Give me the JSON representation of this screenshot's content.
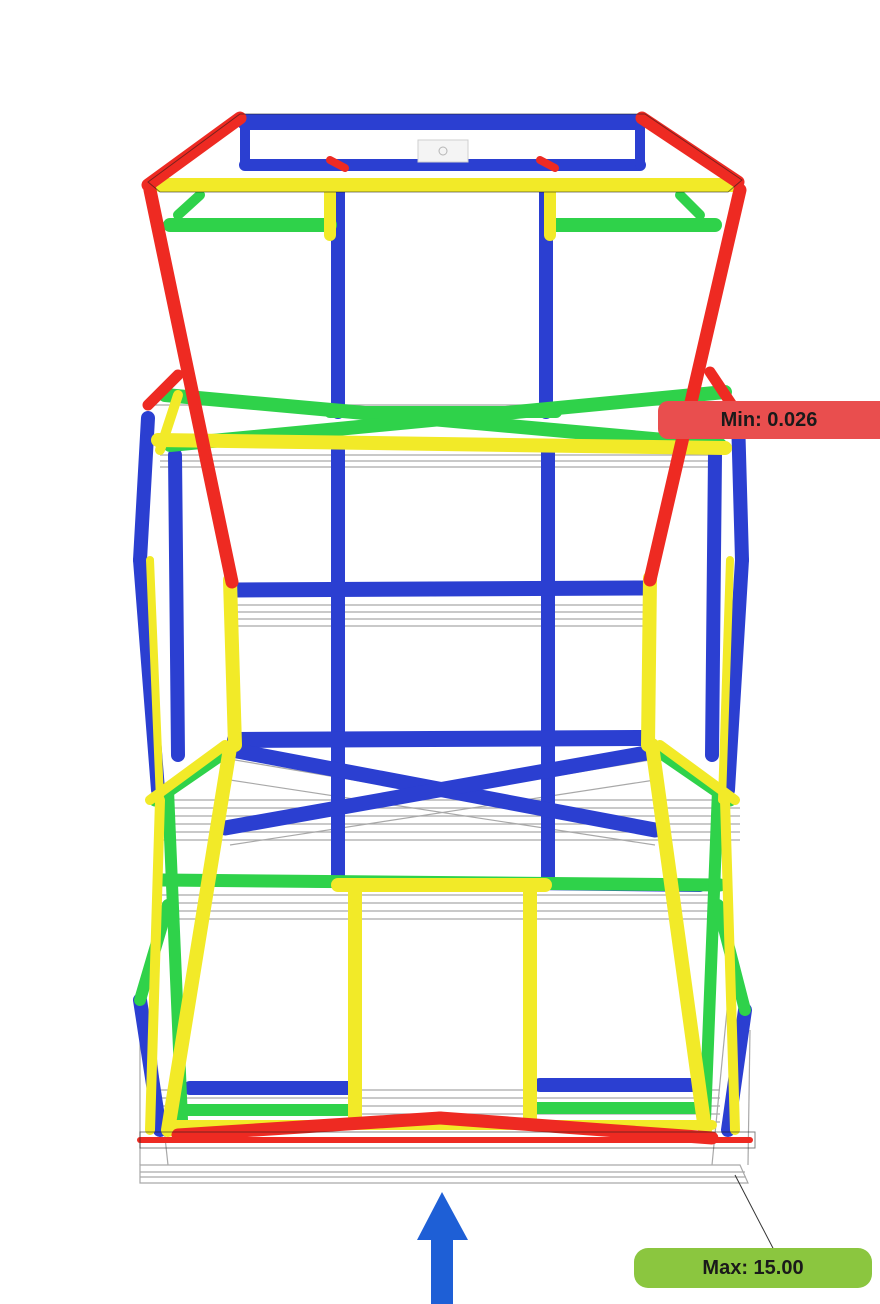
{
  "labels": {
    "min": "Min: 0.026",
    "max": "Max: 15.00"
  },
  "colors": {
    "low": "#2b3fd1",
    "mid_low": "#2fd24a",
    "mid_high": "#f2ea28",
    "high": "#ee2a22",
    "min_tag": "#e94e4e",
    "max_tag": "#8bc63f",
    "undeformed_outline": "#9a9a9a",
    "load_arrow": "#1e5fd6"
  },
  "icons": [
    "load-arrow-icon",
    "origin-triad-icon"
  ]
}
